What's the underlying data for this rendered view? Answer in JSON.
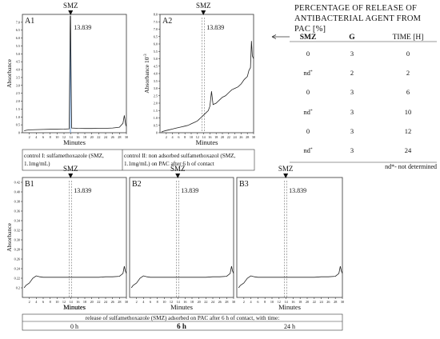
{
  "colors": {
    "trace": "#222222",
    "blue_trace": "#6fa0d8",
    "axis": "#333333",
    "guide": "#555555"
  },
  "marker_label": "SMZ",
  "retention_time": "13.839",
  "panels": [
    {
      "id": "A1",
      "tag": "A1",
      "ylabel": "Absorbance",
      "xlabel": "Minutes",
      "yticks": [
        "0",
        "0.5",
        "1.0",
        "1.5",
        "2.0",
        "2.5",
        "3.0",
        "3.5",
        "4.0",
        "4.5",
        "5.0",
        "5.5",
        "6.0",
        "6.5",
        "7.0"
      ],
      "xticks": [
        "2",
        "4",
        "6",
        "8",
        "10",
        "12",
        "14",
        "16",
        "18",
        "20",
        "22",
        "24",
        "26",
        "28",
        "30"
      ]
    },
    {
      "id": "A2",
      "tag": "A2",
      "ylabel": "Absorbance 10",
      "ylabel_exp": "-3",
      "xlabel": "Minutes",
      "yticks": [
        "0",
        "0.5",
        "1.0",
        "1.5",
        "2.0",
        "2.5",
        "3.0",
        "3.5",
        "4.0",
        "4.5",
        "5.0",
        "5.5",
        "6.0",
        "6.5",
        "7.0",
        "7.5",
        "8.0"
      ],
      "xticks": [
        "2",
        "4",
        "6",
        "8",
        "10",
        "12",
        "14",
        "16",
        "18",
        "20",
        "22",
        "24",
        "26",
        "28",
        "30"
      ]
    },
    {
      "id": "B1",
      "tag": "B1",
      "ylabel": "Absorbance",
      "xlabel": "",
      "yticks": [
        "0.2",
        "0.22",
        "0.24",
        "0.26",
        "0.28",
        "0.30",
        "0.32",
        "0.34",
        "0.36",
        "0.38",
        "0.40",
        "0.42"
      ],
      "xticks": [
        "2",
        "4",
        "6",
        "8",
        "10",
        "12",
        "14",
        "16",
        "18",
        "20",
        "22",
        "24",
        "26",
        "28",
        "30"
      ]
    },
    {
      "id": "B2",
      "tag": "B2",
      "xlabel": "Minutes",
      "xticks": [
        "2",
        "4",
        "6",
        "8",
        "10",
        "12",
        "14",
        "16",
        "18",
        "20",
        "22",
        "24",
        "26",
        "28",
        "30"
      ]
    },
    {
      "id": "B3",
      "tag": "B3",
      "xlabel": "Minutes",
      "xticks": [
        "2",
        "4",
        "6",
        "8",
        "10",
        "12",
        "14",
        "16",
        "18",
        "20",
        "22",
        "24",
        "26",
        "28",
        "30"
      ]
    }
  ],
  "b_xlabel": "Minutes",
  "captions": {
    "control1": "control I: sulfamethoxazole (SMZ, 1.1mg/mL)",
    "control2": "control II: non adsorbed sulfamethoxazol (SMZ, 1.1mg/mL) on PAC after 6 h of contact",
    "release": "release of sulfamethoxazole (SMZ) adsorbed on PAC after 6 h of contact, with time:",
    "t0": "0 h",
    "t6": "6 h",
    "t24": "24 h"
  },
  "table": {
    "title": "PERCENTAGE OF RELEASE OF ANTIBACTERIAL AGENT FROM PAC [%]",
    "headers": [
      "SMZ",
      "G",
      "TIME [H]"
    ],
    "rows": [
      {
        "smz": "0",
        "nd": false,
        "g": "3",
        "time": "0"
      },
      {
        "smz": "nd",
        "nd": true,
        "g": "2",
        "time": "2"
      },
      {
        "smz": "0",
        "nd": false,
        "g": "3",
        "time": "6"
      },
      {
        "smz": "nd",
        "nd": true,
        "g": "3",
        "time": "10"
      },
      {
        "smz": "0",
        "nd": false,
        "g": "3",
        "time": "12"
      },
      {
        "smz": "nd",
        "nd": true,
        "g": "3",
        "time": "24"
      }
    ],
    "footnote": "nd*- not determined",
    "asterisk": "*"
  },
  "chart_data": [
    {
      "type": "line",
      "title": "A1",
      "xlabel": "Minutes",
      "ylabel": "Absorbance",
      "xlim": [
        0,
        30
      ],
      "ylim": [
        0,
        7.5
      ],
      "peak_label": "13.839",
      "series": [
        {
          "x": [
            0.5,
            1,
            2,
            4,
            6,
            8,
            10,
            12,
            13.5,
            13.8,
            13.9,
            14.2,
            16,
            18,
            20,
            22,
            24,
            26,
            28,
            29,
            29.4,
            29.6,
            29.8,
            30
          ],
          "y": [
            0.12,
            0.15,
            0.18,
            0.2,
            0.21,
            0.22,
            0.22,
            0.23,
            0.25,
            7.4,
            7.4,
            0.3,
            0.28,
            0.27,
            0.27,
            0.28,
            0.28,
            0.3,
            0.35,
            0.6,
            1.1,
            0.8,
            0.5,
            0.4
          ]
        }
      ]
    },
    {
      "type": "line",
      "title": "A2",
      "xlabel": "Minutes",
      "ylabel": "Absorbance 10-3",
      "xlim": [
        0,
        30
      ],
      "ylim": [
        0,
        8
      ],
      "peak_label": "13.839",
      "series": [
        {
          "x": [
            0.5,
            1,
            2,
            3,
            4,
            5,
            6,
            7,
            8,
            9,
            10,
            11,
            12,
            12.5,
            13,
            13.5,
            14,
            14.5,
            15,
            15.5,
            16,
            16.5,
            17,
            18,
            19,
            20,
            21,
            22,
            23,
            24,
            25,
            26,
            27,
            28,
            28.5,
            29,
            29.3,
            29.6,
            30
          ],
          "y": [
            0.05,
            0.1,
            0.15,
            0.2,
            0.25,
            0.3,
            0.35,
            0.4,
            0.45,
            0.5,
            0.6,
            0.7,
            0.8,
            0.9,
            1.0,
            1.1,
            1.2,
            1.3,
            1.4,
            1.5,
            1.8,
            2.8,
            1.9,
            2.0,
            2.2,
            2.4,
            2.5,
            2.7,
            2.9,
            3.0,
            3.1,
            3.3,
            3.6,
            3.8,
            4.2,
            4.4,
            6.2,
            5.2,
            5.0
          ]
        }
      ]
    },
    {
      "type": "line",
      "title": "B1",
      "xlabel": "Minutes",
      "ylabel": "Absorbance",
      "xlim": [
        0,
        30
      ],
      "ylim": [
        0.18,
        0.43
      ],
      "peak_label": "13.839",
      "series": [
        {
          "x": [
            0.5,
            1,
            2,
            3,
            4,
            5,
            6,
            8,
            10,
            12,
            14,
            16,
            18,
            20,
            22,
            24,
            26,
            28,
            29,
            29.4,
            29.7,
            30
          ],
          "y": [
            0.2,
            0.205,
            0.21,
            0.22,
            0.225,
            0.223,
            0.222,
            0.222,
            0.222,
            0.222,
            0.222,
            0.222,
            0.222,
            0.222,
            0.222,
            0.223,
            0.223,
            0.224,
            0.23,
            0.245,
            0.235,
            0.23
          ]
        }
      ]
    },
    {
      "type": "line",
      "title": "B2",
      "xlabel": "Minutes",
      "xlim": [
        0,
        30
      ],
      "ylim": [
        0.18,
        0.43
      ],
      "peak_label": "13.839",
      "series": [
        {
          "x": [
            0.5,
            1,
            2,
            3,
            4,
            5,
            6,
            8,
            10,
            12,
            14,
            16,
            18,
            20,
            22,
            24,
            26,
            28,
            29,
            29.4,
            29.7,
            30
          ],
          "y": [
            0.2,
            0.205,
            0.21,
            0.22,
            0.225,
            0.223,
            0.222,
            0.222,
            0.222,
            0.222,
            0.222,
            0.222,
            0.222,
            0.222,
            0.222,
            0.223,
            0.223,
            0.224,
            0.23,
            0.245,
            0.235,
            0.23
          ]
        }
      ]
    },
    {
      "type": "line",
      "title": "B3",
      "xlabel": "Minutes",
      "xlim": [
        0,
        30
      ],
      "ylim": [
        0.18,
        0.43
      ],
      "peak_label": "13.839",
      "series": [
        {
          "x": [
            0.5,
            1,
            2,
            3,
            4,
            5,
            6,
            8,
            10,
            12,
            14,
            16,
            18,
            20,
            22,
            24,
            26,
            28,
            29,
            29.4,
            29.7,
            30
          ],
          "y": [
            0.2,
            0.205,
            0.21,
            0.22,
            0.225,
            0.223,
            0.222,
            0.222,
            0.222,
            0.222,
            0.222,
            0.222,
            0.222,
            0.222,
            0.222,
            0.223,
            0.223,
            0.224,
            0.23,
            0.245,
            0.235,
            0.23
          ]
        }
      ]
    }
  ]
}
